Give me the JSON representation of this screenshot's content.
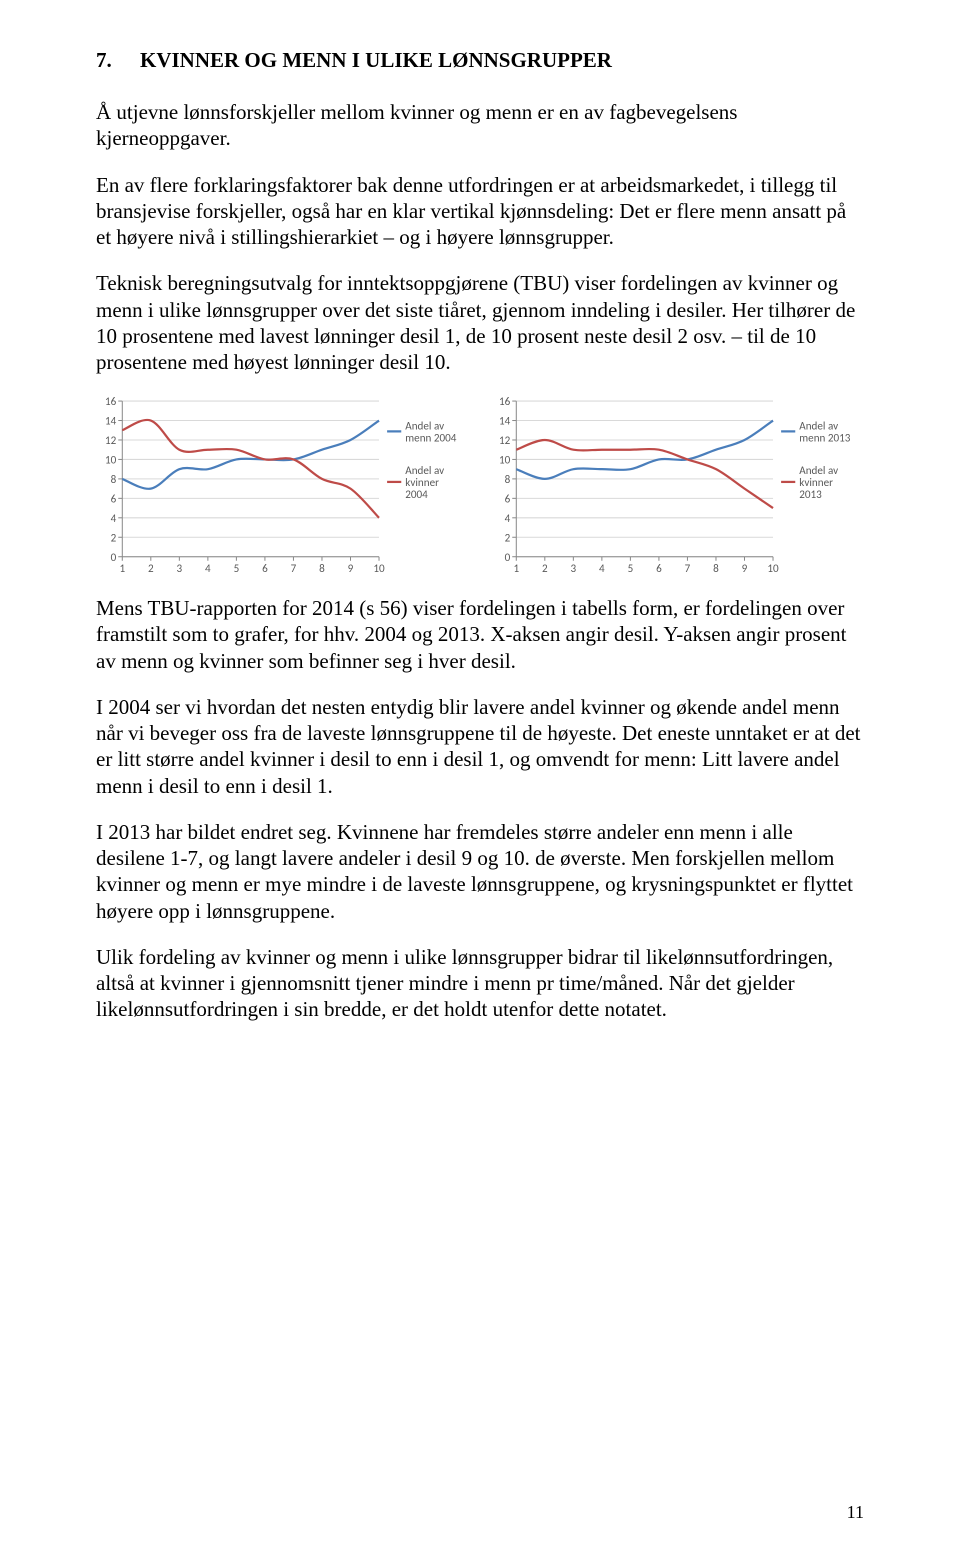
{
  "heading": {
    "num": "7.",
    "title": "KVINNER OG MENN I ULIKE LØNNSGRUPPER"
  },
  "paragraphs": {
    "p1": "Å utjevne lønnsforskjeller mellom kvinner og menn er en av fagbevegelsens kjerneoppgaver.",
    "p2": "En av flere forklaringsfaktorer bak denne utfordringen er at arbeidsmarkedet, i tillegg til bransjevise forskjeller, også har en klar vertikal kjønnsdeling: Det er flere menn ansatt på et høyere nivå i stillingshierarkiet – og i høyere lønnsgrupper.",
    "p3": "Teknisk beregningsutvalg for inntektsoppgjørene (TBU) viser fordelingen av kvinner og menn i ulike lønnsgrupper over det siste tiåret, gjennom inndeling i desiler. Her tilhører de 10 prosentene med lavest lønninger desil 1, de 10 prosent neste desil 2 osv. – til de 10 prosentene med høyest lønninger desil 10.",
    "p4": "Mens TBU-rapporten for 2014 (s 56) viser fordelingen i tabells form, er fordelingen over framstilt som to grafer, for hhv. 2004 og 2013. X-aksen angir desil. Y-aksen angir prosent av menn og kvinner som befinner seg i hver desil.",
    "p5": "I 2004 ser vi hvordan det nesten entydig blir lavere andel kvinner og økende andel menn når vi beveger oss fra de laveste lønnsgruppene til de høyeste. Det eneste unntaket er at det er litt større andel kvinner i desil to enn i desil 1, og omvendt for menn: Litt lavere andel menn i desil to enn i desil 1.",
    "p6": "I 2013 har bildet endret seg. Kvinnene har fremdeles større andeler enn menn i alle desilene 1-7, og langt lavere andeler i desil 9 og 10. de øverste. Men forskjellen mellom kvinner og menn er mye mindre i de laveste lønnsgruppene, og krysningspunktet er flyttet høyere opp i lønnsgruppene.",
    "p7": "Ulik fordeling av kvinner og menn i ulike lønnsgrupper bidrar til likelønnsutfordringen, altså at kvinner i gjennomsnitt tjener mindre i menn pr time/måned. Når det gjelder likelønnsutfordringen i sin bredde, er det holdt utenfor dette notatet."
  },
  "chart_left": {
    "type": "line",
    "categories": [
      1,
      2,
      3,
      4,
      5,
      6,
      7,
      8,
      9,
      10
    ],
    "series": [
      {
        "name": "Andel av menn 2004",
        "color": "#4a7ebb",
        "values": [
          8,
          7,
          9,
          9,
          10,
          10,
          10,
          11,
          12,
          14
        ]
      },
      {
        "name": "Andel av kvinner 2004",
        "color": "#be4b48",
        "values": [
          13,
          14,
          11,
          11,
          11,
          10,
          10,
          8,
          7,
          4
        ]
      }
    ],
    "legend": [
      {
        "label": "Andel av menn 2004",
        "color": "#4a7ebb"
      },
      {
        "label": "Andel av kvinner 2004",
        "color": "#be4b48"
      }
    ],
    "ylim": [
      0,
      16
    ],
    "ytick_step": 2,
    "x_labels": [
      "1",
      "2",
      "3",
      "4",
      "5",
      "6",
      "7",
      "8",
      "9",
      "10"
    ],
    "y_labels": [
      "0",
      "2",
      "4",
      "6",
      "8",
      "10",
      "12",
      "14",
      "16"
    ],
    "grid_color": "#d9d9d9",
    "axis_color": "#888888",
    "background": "#ffffff",
    "tick_font_size": 11,
    "legend_font_size": 11,
    "line_width": 2.2
  },
  "chart_right": {
    "type": "line",
    "categories": [
      1,
      2,
      3,
      4,
      5,
      6,
      7,
      8,
      9,
      10
    ],
    "series": [
      {
        "name": "Andel av menn 2013",
        "color": "#4a7ebb",
        "values": [
          9,
          8,
          9,
          9,
          9,
          10,
          10,
          11,
          12,
          14
        ]
      },
      {
        "name": "Andel av kvinner 2013",
        "color": "#be4b48",
        "values": [
          11,
          12,
          11,
          11,
          11,
          11,
          10,
          9,
          7,
          5
        ]
      }
    ],
    "legend": [
      {
        "label": "Andel av menn 2013",
        "color": "#4a7ebb"
      },
      {
        "label": "Andel av kvinner 2013",
        "color": "#be4b48"
      }
    ],
    "ylim": [
      0,
      16
    ],
    "ytick_step": 2,
    "x_labels": [
      "1",
      "2",
      "3",
      "4",
      "5",
      "6",
      "7",
      "8",
      "9",
      "10"
    ],
    "y_labels": [
      "0",
      "2",
      "4",
      "6",
      "8",
      "10",
      "12",
      "14",
      "16"
    ],
    "grid_color": "#d9d9d9",
    "axis_color": "#888888",
    "background": "#ffffff",
    "tick_font_size": 11,
    "legend_font_size": 11,
    "line_width": 2.2
  },
  "page_number": "11"
}
